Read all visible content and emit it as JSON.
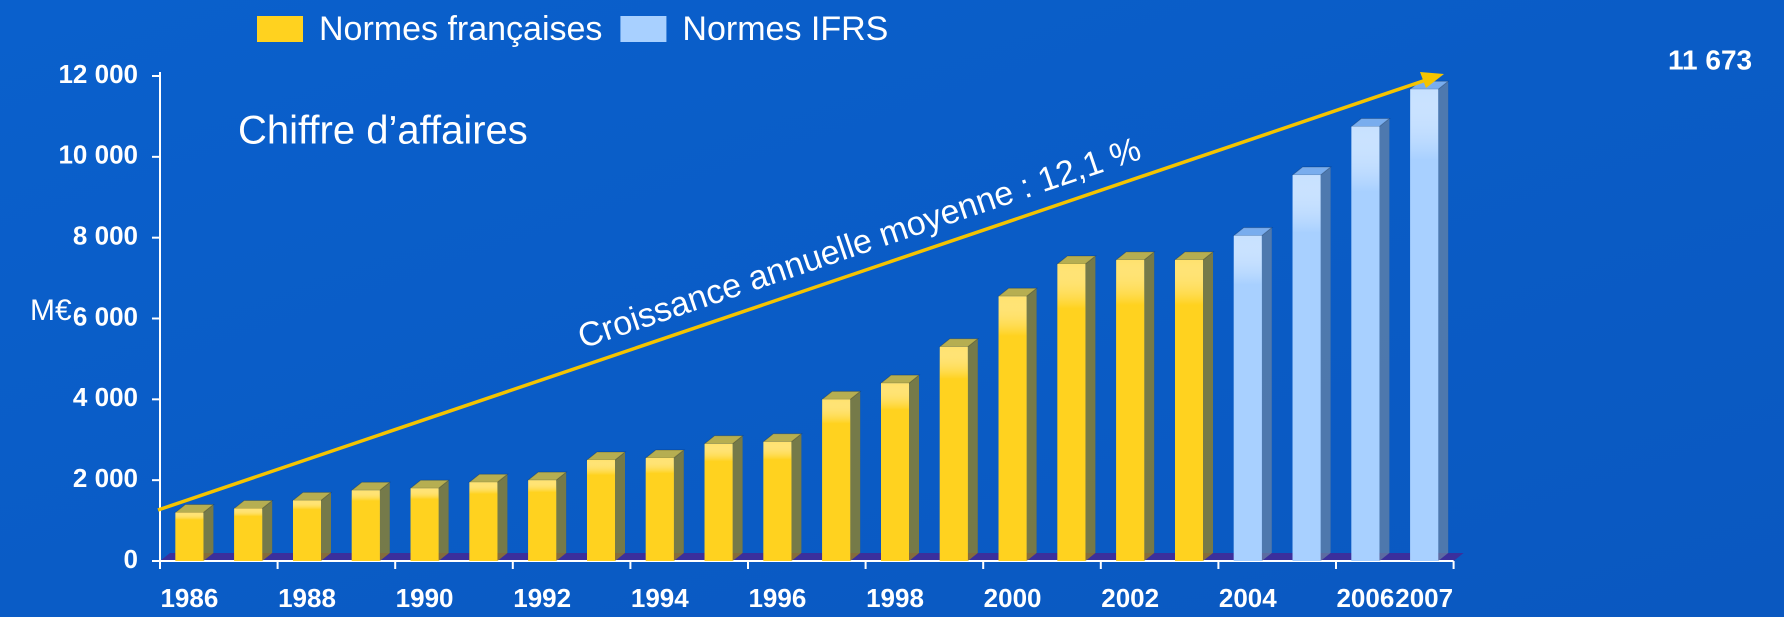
{
  "chart_data": {
    "type": "bar3d",
    "annotations": [
      "Chiffre d’affaires",
      "Croissance annuelle moyenne : 12,1 %"
    ],
    "ylabel": "M€",
    "categories": [
      "1986",
      null,
      "1988",
      null,
      "1990",
      null,
      "1992",
      null,
      "1994",
      null,
      "1996",
      null,
      "1998",
      null,
      "2000",
      null,
      "2002",
      null,
      "2004",
      null,
      "2006",
      "2007"
    ],
    "series": [
      {
        "name": "Normes françaises",
        "color": "#ffd21f",
        "values": [
          1200,
          1300,
          1500,
          1750,
          1800,
          1950,
          2000,
          2500,
          2550,
          2900,
          2950,
          4000,
          4400,
          5300,
          6550,
          7350,
          7450,
          7450,
          null,
          null,
          null,
          null
        ]
      },
      {
        "name": "Normes IFRS",
        "color": "#a8d0ff",
        "values": [
          null,
          null,
          null,
          null,
          null,
          null,
          null,
          null,
          null,
          null,
          null,
          null,
          null,
          null,
          null,
          null,
          null,
          null,
          8050,
          9550,
          10750,
          11673
        ],
        "value_labels": [
          null,
          null,
          null,
          null,
          null,
          null,
          null,
          null,
          null,
          null,
          null,
          null,
          null,
          null,
          null,
          null,
          null,
          null,
          null,
          null,
          null,
          "11 673"
        ]
      }
    ],
    "ylim": [
      0,
      12000
    ],
    "yticks": [
      0,
      {
        "value": 2000,
        "label": "2 000"
      },
      {
        "value": 4000,
        "label": "4 000"
      },
      {
        "value": 6000,
        "label": "6 000"
      },
      {
        "value": 8000,
        "label": "8 000"
      },
      {
        "value": 10000,
        "label": "10 000"
      },
      {
        "value": 12000,
        "label": "12 000"
      }
    ],
    "legend": "top",
    "arrow_color": "#f5c400"
  }
}
